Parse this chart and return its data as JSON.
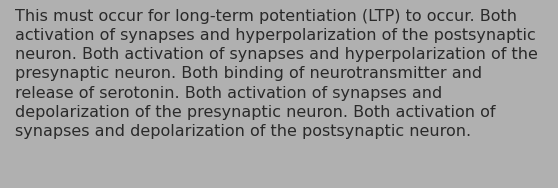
{
  "lines": [
    "This must occur for long-term potentiation (LTP) to occur. Both",
    "activation of synapses and hyperpolarization of the postsynaptic",
    "neuron. Both activation of synapses and hyperpolarization of the",
    "presynaptic neuron. Both binding of neurotransmitter and",
    "release of serotonin. Both activation of synapses and",
    "depolarization of the presynaptic neuron. Both activation of",
    "synapses and depolarization of the postsynaptic neuron."
  ],
  "background_color": "#b0b0b0",
  "text_color": "#2a2a2a",
  "font_size": 11.5,
  "fig_width": 5.58,
  "fig_height": 1.88
}
